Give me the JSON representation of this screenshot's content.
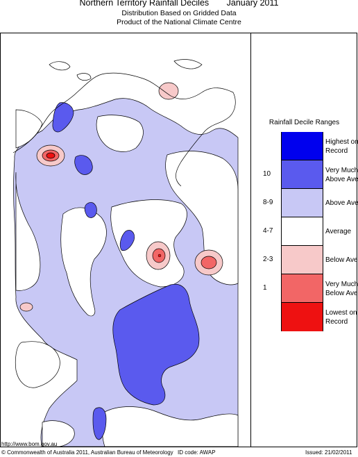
{
  "title": {
    "region": "Northern Territory Rainfall Deciles",
    "period": "January 2011"
  },
  "subtitle1": "Distribution Based on Gridded Data",
  "subtitle2": "Product of the National Climate Centre",
  "legend": {
    "title": "Rainfall Decile Ranges",
    "items": [
      {
        "label": "Highest on\nRecord",
        "range": "",
        "color": "#0000ee"
      },
      {
        "label": "Very Much\nAbove Average",
        "range": "10",
        "color": "#5a5aee"
      },
      {
        "label": "Above Average",
        "range": "8-9",
        "color": "#c8c8f5"
      },
      {
        "label": "Average",
        "range": "4-7",
        "color": "#ffffff"
      },
      {
        "label": "Below Average",
        "range": "2-3",
        "color": "#f7c9c9"
      },
      {
        "label": "Very Much\nBelow Average",
        "range": "1",
        "color": "#f26666"
      },
      {
        "label": "Lowest on\nRecord",
        "range": "",
        "color": "#ee1111"
      }
    ]
  },
  "footer": {
    "url": "http://www.bom.gov.au",
    "copyright": "© Commonwealth of Australia 2011, Australian Bureau of Meteorology",
    "id_code": "ID code: AWAP",
    "issued": "Issued: 21/02/2011"
  },
  "colors": {
    "above_average": "#c8c8f5",
    "very_much_above": "#5a5aee",
    "below_average": "#f7c9c9",
    "very_much_below": "#f26666",
    "lowest": "#ee1111"
  }
}
